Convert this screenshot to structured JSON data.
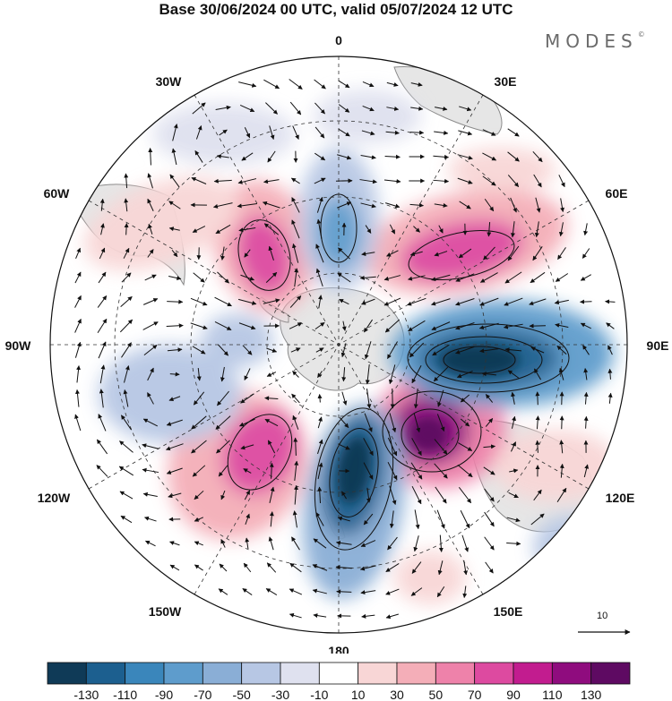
{
  "title": "Base 30/06/2024 00 UTC, valid 05/07/2024 12 UTC",
  "brand": {
    "text": "MODES",
    "mark": "©"
  },
  "map": {
    "projection": "south-polar-stereographic",
    "longitude_labels": [
      {
        "key": "0",
        "text": "0"
      },
      {
        "key": "30E",
        "text": "30E"
      },
      {
        "key": "60E",
        "text": "60E"
      },
      {
        "key": "90E",
        "text": "90E"
      },
      {
        "key": "120E",
        "text": "120E"
      },
      {
        "key": "150E",
        "text": "150E"
      },
      {
        "key": "180",
        "text": "180"
      },
      {
        "key": "150W",
        "text": "150W"
      },
      {
        "key": "120W",
        "text": "120W"
      },
      {
        "key": "90W",
        "text": "90W"
      },
      {
        "key": "60W",
        "text": "60W"
      },
      {
        "key": "30W",
        "text": "30W"
      }
    ],
    "reference_vector": {
      "label": "10"
    },
    "colors": {
      "land": "#e6e6e6",
      "coast": "#8a8a8a",
      "graticule": "#333333"
    }
  },
  "colorbar": {
    "tick_labels": [
      "-130",
      "-110",
      "-90",
      "-70",
      "-50",
      "-30",
      "-10",
      "10",
      "30",
      "50",
      "70",
      "90",
      "110",
      "130"
    ],
    "colors": [
      "#0f3a57",
      "#1c5f8f",
      "#3a86bb",
      "#5e9ccc",
      "#8aaed6",
      "#b7c7e4",
      "#dfe1ef",
      "#ffffff",
      "#f8d6d6",
      "#f4aeb8",
      "#ee82aa",
      "#dd4aa0",
      "#c21c8f",
      "#8f0c7e",
      "#5e0a62"
    ]
  }
}
